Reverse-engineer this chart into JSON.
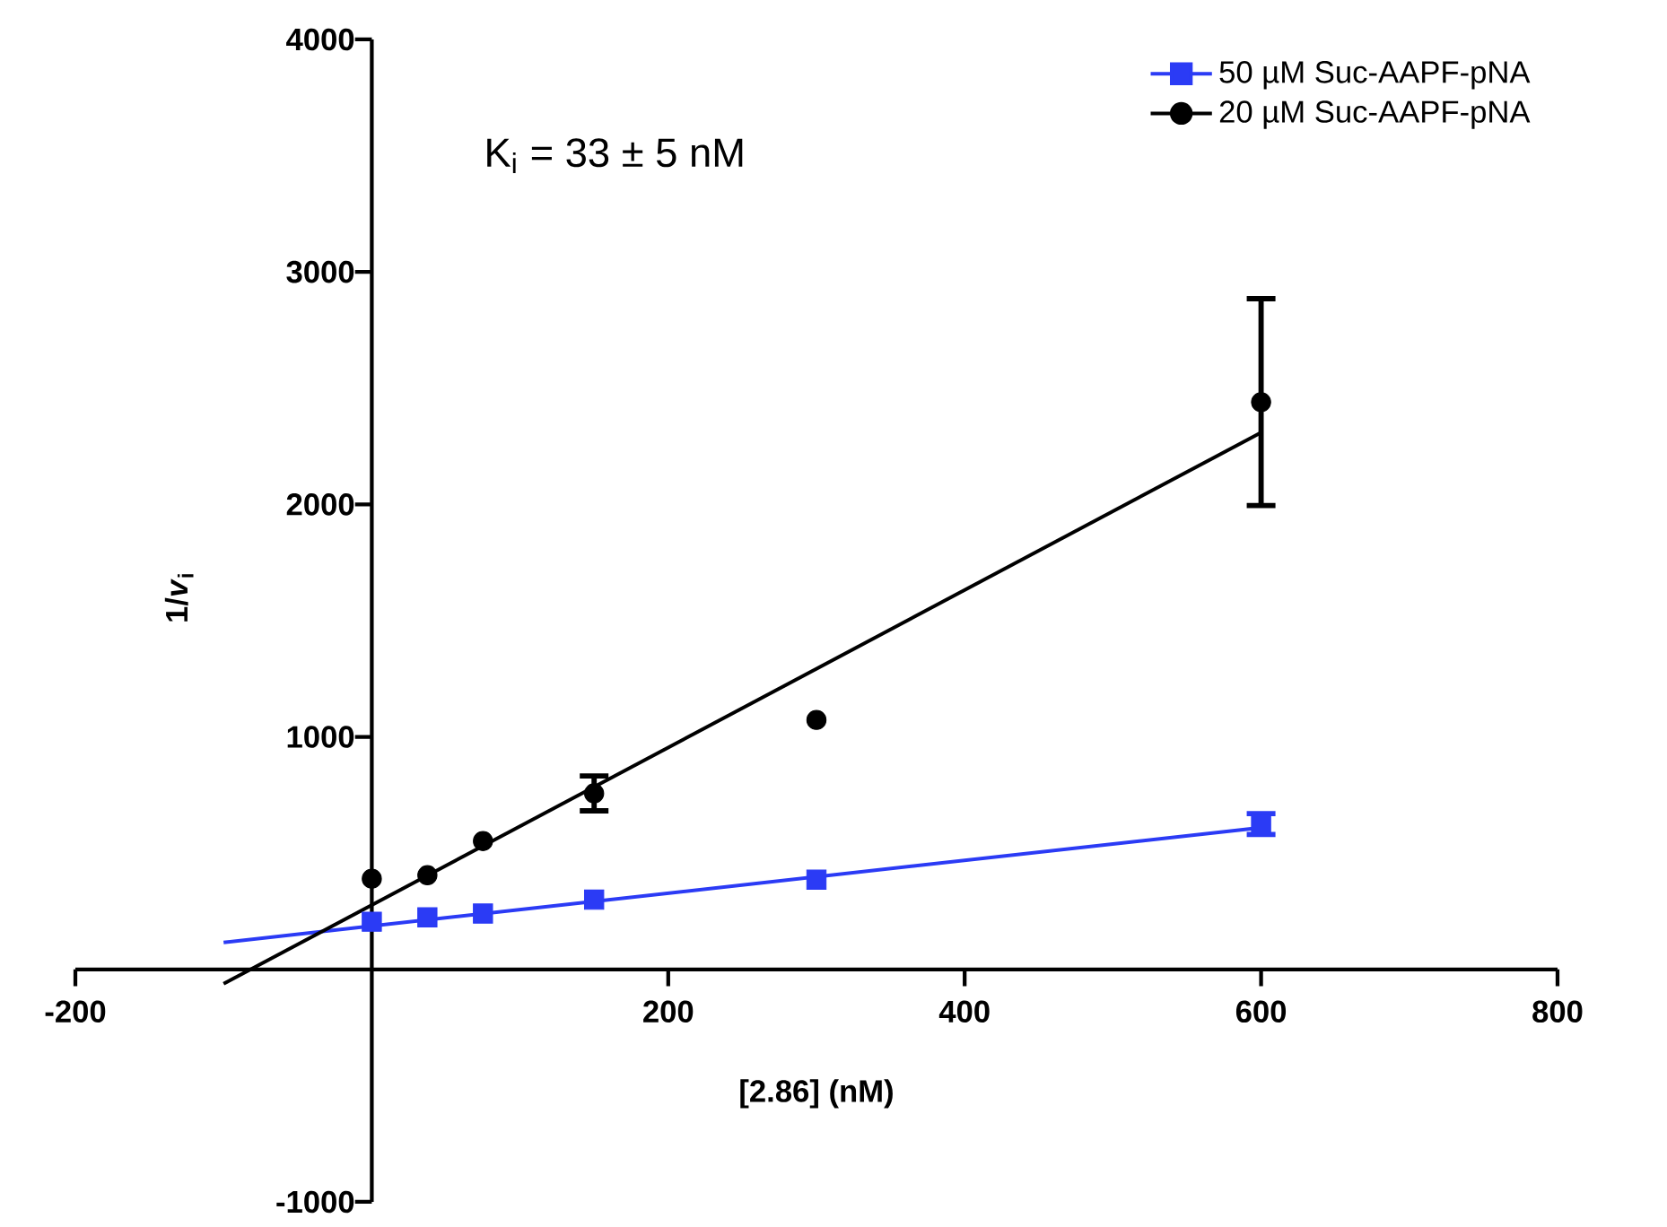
{
  "chart_data": {
    "type": "scatter",
    "xlabel": "[2.86] (nM)",
    "ylabel": "1/*v*$_{i}$",
    "annotations": [
      "K$_{i}$ = 33 ± 5 nM"
    ],
    "xlim": [
      -200,
      800
    ],
    "ylim": [
      -1000,
      4000
    ],
    "xticks": [
      -200,
      200,
      400,
      600,
      800
    ],
    "yticks": [
      -1000,
      1000,
      2000,
      3000,
      4000
    ],
    "grid": false,
    "legend": "top right",
    "series": [
      {
        "name": "50 µM Suc-AAPF-pNA",
        "color": "#2b3bf5",
        "marker": "square",
        "x": [
          0,
          37.5,
          75,
          150,
          300,
          600
        ],
        "values": [
          205,
          224,
          240,
          300,
          386,
          625
        ],
        "errors": [
          null,
          null,
          null,
          null,
          null,
          45
        ]
      },
      {
        "name": "20 µM Suc-AAPF-pNA",
        "color": "#000000",
        "marker": "circle",
        "x": [
          0,
          37.5,
          75,
          150,
          300,
          600
        ],
        "values": [
          390,
          405,
          552,
          757,
          1073,
          2440
        ],
        "errors": [
          null,
          null,
          null,
          75,
          null,
          445
        ]
      },
      {
        "type": "line",
        "color": "#2b3bf5",
        "line_style": "solid",
        "x": [
          -100,
          600
        ],
        "values": [
          116,
          610
        ]
      },
      {
        "type": "line",
        "color": "#000000",
        "line_style": "solid",
        "x": [
          -100,
          600
        ],
        "values": [
          -62,
          2309
        ]
      }
    ]
  }
}
